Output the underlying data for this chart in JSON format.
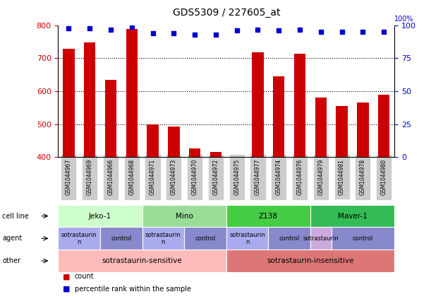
{
  "title": "GDS5309 / 227605_at",
  "samples": [
    "GSM1044967",
    "GSM1044969",
    "GSM1044966",
    "GSM1044968",
    "GSM1044971",
    "GSM1044973",
    "GSM1044970",
    "GSM1044972",
    "GSM1044975",
    "GSM1044977",
    "GSM1044974",
    "GSM1044976",
    "GSM1044979",
    "GSM1044981",
    "GSM1044978",
    "GSM1044980"
  ],
  "counts": [
    730,
    748,
    635,
    790,
    500,
    493,
    425,
    415,
    400,
    718,
    645,
    715,
    580,
    555,
    565,
    590
  ],
  "percentiles": [
    98,
    98,
    97,
    99,
    94,
    94,
    93,
    93,
    96,
    97,
    96,
    97,
    95,
    95,
    95,
    95
  ],
  "ylim_left": [
    400,
    800
  ],
  "ylim_right": [
    0,
    100
  ],
  "yticks_left": [
    400,
    500,
    600,
    700,
    800
  ],
  "yticks_right": [
    0,
    25,
    50,
    75,
    100
  ],
  "bar_color": "#cc0000",
  "dot_color": "#0000cc",
  "grid_color": "#000000",
  "cell_line_row": {
    "groups": [
      {
        "label": "Jeko-1",
        "start": 0,
        "end": 4,
        "color": "#ccffcc"
      },
      {
        "label": "Mino",
        "start": 4,
        "end": 8,
        "color": "#99dd99"
      },
      {
        "label": "Z138",
        "start": 8,
        "end": 12,
        "color": "#44cc44"
      },
      {
        "label": "Maver-1",
        "start": 12,
        "end": 16,
        "color": "#33bb55"
      }
    ]
  },
  "agent_row": {
    "groups": [
      {
        "label": "sotrastaurin\nn",
        "start": 0,
        "end": 2,
        "color": "#aaaaee"
      },
      {
        "label": "control",
        "start": 2,
        "end": 4,
        "color": "#8888cc"
      },
      {
        "label": "sotrastaurin\nn",
        "start": 4,
        "end": 6,
        "color": "#aaaaee"
      },
      {
        "label": "control",
        "start": 6,
        "end": 8,
        "color": "#8888cc"
      },
      {
        "label": "sotrastaurin\nn",
        "start": 8,
        "end": 10,
        "color": "#aaaaee"
      },
      {
        "label": "control",
        "start": 10,
        "end": 12,
        "color": "#8888cc"
      },
      {
        "label": "sotrastaurin",
        "start": 12,
        "end": 13,
        "color": "#ccaadd"
      },
      {
        "label": "control",
        "start": 13,
        "end": 16,
        "color": "#8888cc"
      }
    ]
  },
  "other_row": {
    "groups": [
      {
        "label": "sotrastaurin-sensitive",
        "start": 0,
        "end": 8,
        "color": "#ffbbbb"
      },
      {
        "label": "sotrastaurin-insensitive",
        "start": 8,
        "end": 16,
        "color": "#dd7777"
      }
    ]
  },
  "row_labels": [
    "cell line",
    "agent",
    "other"
  ],
  "legend_items": [
    {
      "color": "#cc0000",
      "label": "count"
    },
    {
      "color": "#0000cc",
      "label": "percentile rank within the sample"
    }
  ],
  "bg_color": "#ffffff",
  "tick_bg_color": "#cccccc"
}
